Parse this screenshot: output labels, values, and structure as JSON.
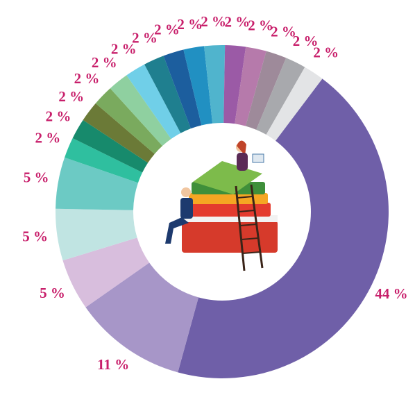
{
  "chart_data": {
    "type": "pie",
    "donut": true,
    "values": [
      44,
      11,
      5,
      5,
      5,
      2,
      2,
      2,
      2,
      2,
      2,
      2,
      2,
      2,
      2,
      2,
      2,
      2,
      2,
      2
    ],
    "value_labels": [
      "44 %",
      "11 %",
      "5 %",
      "5 %",
      "5 %",
      "2 %",
      "2 %",
      "2 %",
      "2 %",
      "2 %",
      "2 %",
      "2 %",
      "2 %",
      "2 %",
      "2 %",
      "2 %",
      "2 %",
      "2 %",
      "2 %",
      "2 %"
    ],
    "colors": [
      "#6f5fa8",
      "#a796c8",
      "#d8bedd",
      "#c0e4e2",
      "#6ccac4",
      "#2fbf9f",
      "#178a6c",
      "#6b7a37",
      "#7aaa5e",
      "#8fd0a0",
      "#70cfe8",
      "#1f7f8f",
      "#1c5e9e",
      "#2190c2",
      "#50b4cd",
      "#9b5aa6",
      "#b67aab",
      "#9e8a9a",
      "#a8a9ad",
      "#e3e4e6"
    ],
    "label_color": "#c81f6b"
  }
}
